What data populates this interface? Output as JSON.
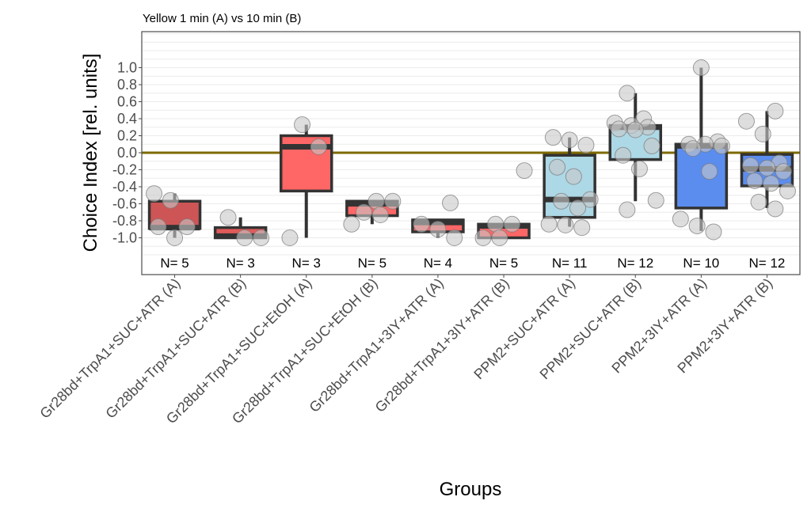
{
  "chart_data": {
    "type": "boxplot",
    "title": "Yellow 1 min (A) vs 10 min (B)",
    "xlabel": "Groups",
    "ylabel": "Choice Index [rel. units]",
    "ylim": [
      -1.27,
      1.42
    ],
    "yticks": [
      1.0,
      0.8,
      0.6,
      0.4,
      0.2,
      0.0,
      -0.2,
      -0.4,
      -0.6,
      -0.8,
      -1.0
    ],
    "ytick_labels": [
      "1.0",
      "0.8",
      "0.6",
      "0.4",
      "0.2",
      "0.0",
      "-0.2",
      "-0.4",
      "-0.6",
      "-0.8",
      "-1.0"
    ],
    "grid": true,
    "reference_line": {
      "y": 0.0,
      "color": "#7f6a00"
    },
    "categories": [
      "Gr28bd+TrpA1+SUC+ATR (A)",
      "Gr28bd+TrpA1+SUC+ATR (B)",
      "Gr28bd+TrpA1+SUC+EtOH (A)",
      "Gr28bd+TrpA1+SUC+EtOH (B)",
      "Gr28bd+TrpA1+3IY+ATR (A)",
      "Gr28bd+TrpA1+3IY+ATR (B)",
      "PPM2+SUC+ATR (A)",
      "PPM2+SUC+ATR (B)",
      "PPM2+3IY+ATR (A)",
      "PPM2+3IY+ATR (B)"
    ],
    "groups": [
      {
        "label": "N= 5",
        "color": "#cd5555",
        "q1": -0.89,
        "median": -0.88,
        "q3": -0.57,
        "whisker_low": -1.0,
        "whisker_high": -0.48,
        "points": [
          -0.48,
          -0.56,
          -0.87,
          -0.87,
          -1.0
        ]
      },
      {
        "label": "N= 3",
        "color": "#e05a5a",
        "q1": -1.0,
        "median": -0.98,
        "q3": -0.88,
        "whisker_low": -1.0,
        "whisker_high": -0.76,
        "points": [
          -0.76,
          -1.0,
          -1.0
        ]
      },
      {
        "label": "N= 3",
        "color": "#ff6666",
        "q1": -0.45,
        "median": 0.07,
        "q3": 0.2,
        "whisker_low": -1.0,
        "whisker_high": 0.33,
        "points": [
          0.33,
          0.07,
          -1.0
        ]
      },
      {
        "label": "N= 5",
        "color": "#ff6666",
        "q1": -0.74,
        "median": -0.6,
        "q3": -0.57,
        "whisker_low": -0.84,
        "whisker_high": -0.57,
        "points": [
          -0.57,
          -0.57,
          -0.7,
          -0.73,
          -0.84
        ]
      },
      {
        "label": "N= 4",
        "color": "#ff6666",
        "q1": -0.93,
        "median": -0.82,
        "q3": -0.79,
        "whisker_low": -1.0,
        "whisker_high": -0.79,
        "points": [
          -0.59,
          -0.84,
          -0.9,
          -1.0
        ]
      },
      {
        "label": "N= 5",
        "color": "#ff6666",
        "q1": -1.0,
        "median": -0.86,
        "q3": -0.84,
        "whisker_low": -1.0,
        "whisker_high": -0.84,
        "points": [
          -0.21,
          -0.84,
          -0.84,
          -1.0,
          -1.0
        ]
      },
      {
        "label": "N= 11",
        "color": "#add8e6",
        "q1": -0.76,
        "median": -0.55,
        "q3": -0.03,
        "whisker_low": -0.87,
        "whisker_high": 0.18,
        "points": [
          0.18,
          0.15,
          0.09,
          -0.17,
          -0.28,
          -0.55,
          -0.57,
          -0.65,
          -0.84,
          -0.85,
          -0.88
        ]
      },
      {
        "label": "N= 12",
        "color": "#add8e6",
        "q1": -0.08,
        "median": 0.3,
        "q3": 0.32,
        "whisker_low": -0.57,
        "whisker_high": 0.7,
        "points": [
          0.7,
          0.4,
          0.35,
          0.32,
          0.3,
          0.28,
          0.27,
          0.08,
          -0.03,
          -0.19,
          -0.56,
          -0.67
        ]
      },
      {
        "label": "N= 10",
        "color": "#5b8def",
        "q1": -0.65,
        "median": 0.08,
        "q3": 0.1,
        "whisker_low": -0.92,
        "whisker_high": 1.0,
        "points": [
          1.0,
          0.13,
          0.1,
          0.1,
          0.08,
          0.05,
          -0.22,
          -0.78,
          -0.86,
          -0.93
        ]
      },
      {
        "label": "N= 12",
        "color": "#5b8def",
        "q1": -0.39,
        "median": -0.19,
        "q3": -0.02,
        "whisker_low": -0.65,
        "whisker_high": 0.49,
        "points": [
          0.49,
          0.37,
          0.22,
          -0.12,
          -0.15,
          -0.18,
          -0.22,
          -0.33,
          -0.36,
          -0.45,
          -0.58,
          -0.66
        ]
      }
    ]
  }
}
